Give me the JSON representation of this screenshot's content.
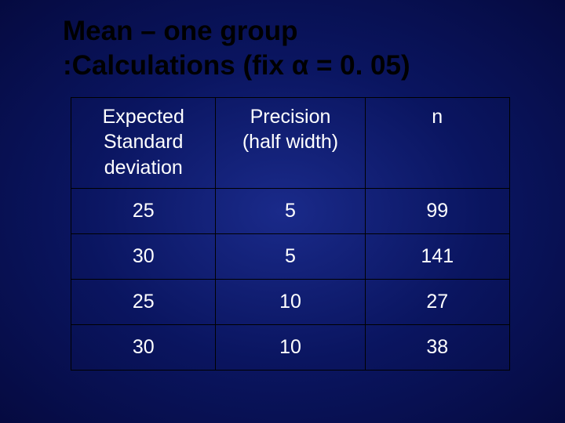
{
  "title": {
    "line1": "Mean – one group",
    "line2": ":Calculations (fix α = 0. 05)"
  },
  "table": {
    "headers": {
      "col1_line1": "Expected",
      "col1_line2": "Standard",
      "col1_line3": "deviation",
      "col2_line1": "Precision",
      "col2_line2": "(half width)",
      "col3": "n"
    },
    "rows": [
      {
        "sd": "25",
        "precision": "5",
        "n": "99"
      },
      {
        "sd": "30",
        "precision": "5",
        "n": "141"
      },
      {
        "sd": "25",
        "precision": "10",
        "n": "27"
      },
      {
        "sd": "30",
        "precision": "10",
        "n": "38"
      }
    ],
    "styling": {
      "border_color": "#000000",
      "text_color": "#ffffff",
      "title_color": "#000000",
      "background_gradient_center": "#1a2a8a",
      "background_gradient_mid": "#0a1560",
      "background_gradient_edge": "#050a40",
      "title_fontsize": 35,
      "cell_fontsize": 25,
      "col_widths_percent": [
        33,
        34,
        33
      ]
    }
  }
}
